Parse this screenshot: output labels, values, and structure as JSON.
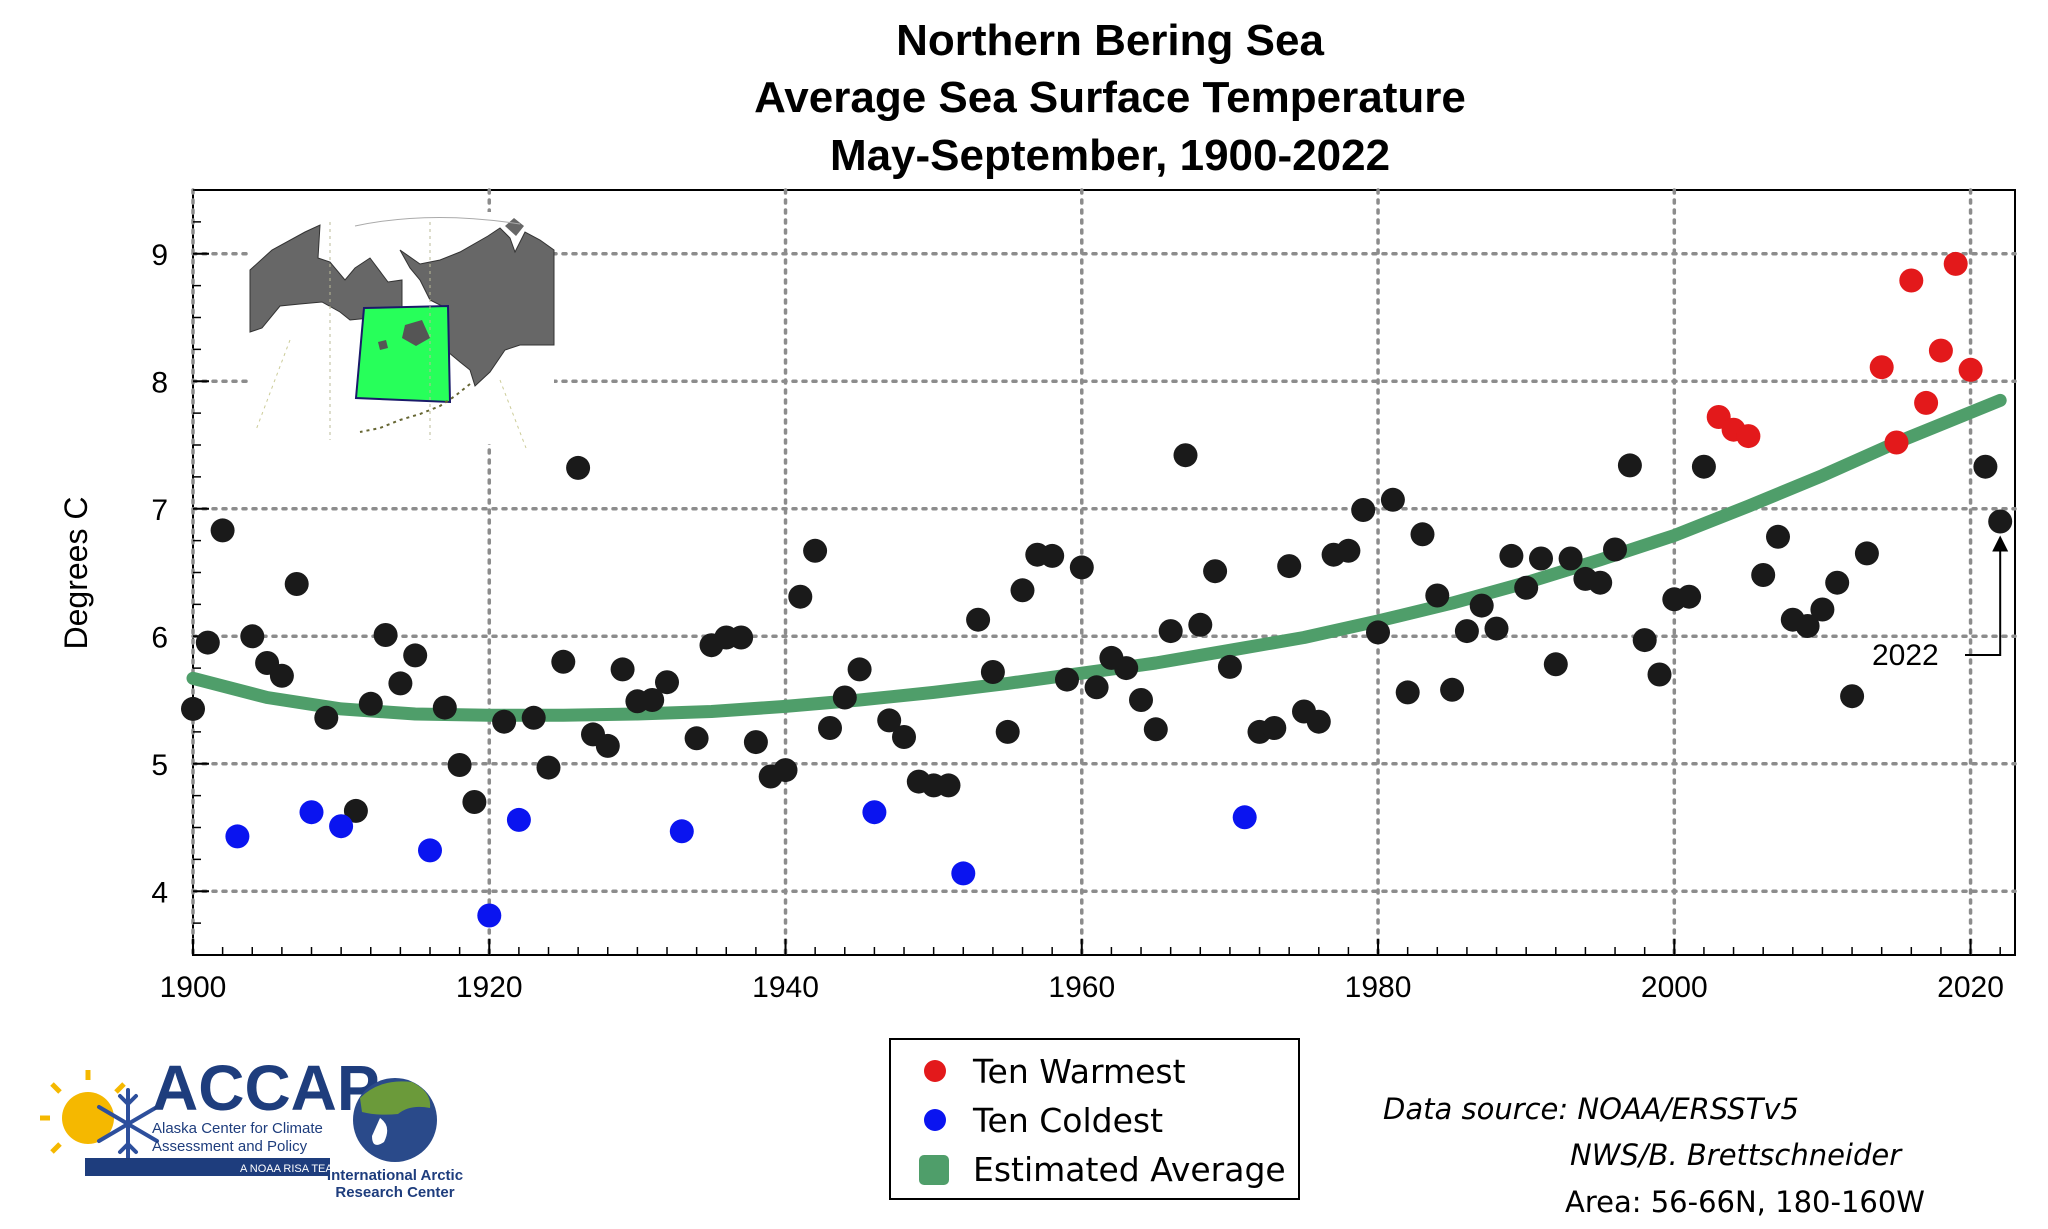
{
  "chart_data": {
    "type": "scatter",
    "title_lines": [
      "Northern Bering Sea",
      "Average Sea Surface Temperature",
      "May-September, 1900-2022"
    ],
    "xlabel": "",
    "ylabel": "Degrees C",
    "xlim": [
      1900,
      2023
    ],
    "ylim": [
      3.5,
      9.5
    ],
    "xticks": [
      1900,
      1920,
      1940,
      1960,
      1980,
      2000,
      2020
    ],
    "yticks": [
      4,
      5,
      6,
      7,
      8,
      9
    ],
    "grid": true,
    "colors": {
      "normal": "#1a1a1a",
      "warm": "#e3191b",
      "cold": "#0a14f0",
      "trend": "#4f9e6a",
      "grid": "#8c8c8c"
    },
    "series": [
      {
        "name": "All years",
        "category": "normal",
        "points": [
          [
            1900,
            5.43
          ],
          [
            1901,
            5.95
          ],
          [
            1902,
            6.83
          ],
          [
            1904,
            6.0
          ],
          [
            1905,
            5.79
          ],
          [
            1906,
            5.69
          ],
          [
            1907,
            6.41
          ],
          [
            1909,
            5.36
          ],
          [
            1911,
            4.63
          ],
          [
            1912,
            5.47
          ],
          [
            1913,
            6.01
          ],
          [
            1914,
            5.63
          ],
          [
            1915,
            5.85
          ],
          [
            1917,
            5.44
          ],
          [
            1918,
            4.99
          ],
          [
            1919,
            4.7
          ],
          [
            1921,
            5.33
          ],
          [
            1923,
            5.36
          ],
          [
            1924,
            4.97
          ],
          [
            1925,
            5.8
          ],
          [
            1926,
            7.32
          ],
          [
            1927,
            5.23
          ],
          [
            1928,
            5.14
          ],
          [
            1929,
            5.74
          ],
          [
            1930,
            5.49
          ],
          [
            1931,
            5.5
          ],
          [
            1932,
            5.64
          ],
          [
            1934,
            5.2
          ],
          [
            1935,
            5.93
          ],
          [
            1936,
            5.99
          ],
          [
            1937,
            5.99
          ],
          [
            1938,
            5.17
          ],
          [
            1939,
            4.9
          ],
          [
            1940,
            4.95
          ],
          [
            1941,
            6.31
          ],
          [
            1942,
            6.67
          ],
          [
            1943,
            5.28
          ],
          [
            1944,
            5.52
          ],
          [
            1945,
            5.74
          ],
          [
            1947,
            5.34
          ],
          [
            1948,
            5.21
          ],
          [
            1949,
            4.86
          ],
          [
            1950,
            4.83
          ],
          [
            1951,
            4.83
          ],
          [
            1953,
            6.13
          ],
          [
            1954,
            5.72
          ],
          [
            1955,
            5.25
          ],
          [
            1956,
            6.36
          ],
          [
            1957,
            6.64
          ],
          [
            1958,
            6.63
          ],
          [
            1959,
            5.66
          ],
          [
            1960,
            6.54
          ],
          [
            1961,
            5.6
          ],
          [
            1962,
            5.83
          ],
          [
            1963,
            5.75
          ],
          [
            1964,
            5.5
          ],
          [
            1965,
            5.27
          ],
          [
            1966,
            6.04
          ],
          [
            1967,
            7.42
          ],
          [
            1968,
            6.09
          ],
          [
            1969,
            6.51
          ],
          [
            1970,
            5.76
          ],
          [
            1972,
            5.25
          ],
          [
            1973,
            5.28
          ],
          [
            1974,
            6.55
          ],
          [
            1975,
            5.41
          ],
          [
            1976,
            5.33
          ],
          [
            1977,
            6.64
          ],
          [
            1978,
            6.67
          ],
          [
            1979,
            6.99
          ],
          [
            1980,
            6.03
          ],
          [
            1981,
            7.07
          ],
          [
            1982,
            5.56
          ],
          [
            1983,
            6.8
          ],
          [
            1984,
            6.32
          ],
          [
            1985,
            5.58
          ],
          [
            1986,
            6.04
          ],
          [
            1987,
            6.24
          ],
          [
            1988,
            6.06
          ],
          [
            1989,
            6.63
          ],
          [
            1990,
            6.38
          ],
          [
            1991,
            6.61
          ],
          [
            1992,
            5.78
          ],
          [
            1993,
            6.61
          ],
          [
            1994,
            6.45
          ],
          [
            1995,
            6.42
          ],
          [
            1996,
            6.68
          ],
          [
            1997,
            7.34
          ],
          [
            1998,
            5.97
          ],
          [
            1999,
            5.7
          ],
          [
            2000,
            6.29
          ],
          [
            2001,
            6.31
          ],
          [
            2002,
            7.33
          ],
          [
            2006,
            6.48
          ],
          [
            2007,
            6.78
          ],
          [
            2008,
            6.13
          ],
          [
            2009,
            6.08
          ],
          [
            2010,
            6.21
          ],
          [
            2011,
            6.42
          ],
          [
            2012,
            5.53
          ],
          [
            2013,
            6.65
          ],
          [
            2021,
            7.33
          ],
          [
            2022,
            6.9
          ]
        ]
      },
      {
        "name": "Ten Warmest",
        "category": "warm",
        "points": [
          [
            2003,
            7.72
          ],
          [
            2004,
            7.62
          ],
          [
            2005,
            7.57
          ],
          [
            2014,
            8.11
          ],
          [
            2015,
            7.52
          ],
          [
            2016,
            8.79
          ],
          [
            2017,
            7.83
          ],
          [
            2018,
            8.24
          ],
          [
            2019,
            8.92
          ],
          [
            2020,
            8.09
          ]
        ]
      },
      {
        "name": "Ten Coldest",
        "category": "cold",
        "points": [
          [
            1903,
            4.43
          ],
          [
            1908,
            4.62
          ],
          [
            1910,
            4.51
          ],
          [
            1916,
            4.32
          ],
          [
            1920,
            3.81
          ],
          [
            1922,
            4.56
          ],
          [
            1933,
            4.47
          ],
          [
            1946,
            4.62
          ],
          [
            1952,
            4.14
          ],
          [
            1971,
            4.58
          ]
        ]
      },
      {
        "name": "Estimated Average",
        "category": "trend",
        "type": "line",
        "points": [
          [
            1900,
            5.67
          ],
          [
            1905,
            5.52
          ],
          [
            1910,
            5.43
          ],
          [
            1915,
            5.39
          ],
          [
            1920,
            5.38
          ],
          [
            1925,
            5.38
          ],
          [
            1930,
            5.39
          ],
          [
            1935,
            5.41
          ],
          [
            1940,
            5.45
          ],
          [
            1945,
            5.5
          ],
          [
            1950,
            5.56
          ],
          [
            1955,
            5.63
          ],
          [
            1960,
            5.71
          ],
          [
            1965,
            5.79
          ],
          [
            1970,
            5.89
          ],
          [
            1975,
            5.99
          ],
          [
            1980,
            6.12
          ],
          [
            1985,
            6.26
          ],
          [
            1990,
            6.42
          ],
          [
            1995,
            6.6
          ],
          [
            2000,
            6.79
          ],
          [
            2005,
            7.02
          ],
          [
            2010,
            7.26
          ],
          [
            2015,
            7.52
          ],
          [
            2022,
            7.85
          ]
        ]
      }
    ],
    "annotations": [
      {
        "text": "2022",
        "target": [
          2022,
          6.9
        ]
      }
    ]
  },
  "legend": {
    "items": [
      {
        "label": "Ten Warmest",
        "color": "#e3191b",
        "shape": "circle"
      },
      {
        "label": "Ten Coldest",
        "color": "#0a14f0",
        "shape": "circle"
      },
      {
        "label": "Estimated Average",
        "color": "#4f9e6a",
        "shape": "square"
      }
    ]
  },
  "source": {
    "line1": "Data source: NOAA/ERSSTv5",
    "line2": "NWS/B. Brettschneider",
    "line3": "Area: 56-66N, 180-160W"
  },
  "logos": {
    "accap": {
      "acronym": "ACCAP",
      "line1": "Alaska Center for Climate",
      "line2": "Assessment and Policy",
      "tagline": "A NOAA RISA TEAM"
    },
    "iarc": {
      "line1": "International Arctic",
      "line2": "Research Center"
    }
  }
}
